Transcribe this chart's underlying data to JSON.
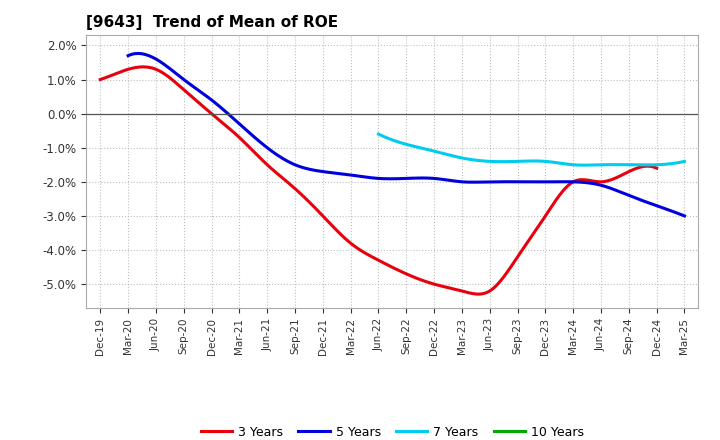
{
  "title": "[9643]  Trend of Mean of ROE",
  "background_color": "#ffffff",
  "plot_bg_color": "#ffffff",
  "grid_color": "#b0b0b0",
  "x_labels": [
    "Dec-19",
    "Mar-20",
    "Jun-20",
    "Sep-20",
    "Dec-20",
    "Mar-21",
    "Jun-21",
    "Sep-21",
    "Dec-21",
    "Mar-22",
    "Jun-22",
    "Sep-22",
    "Dec-22",
    "Mar-23",
    "Jun-23",
    "Sep-23",
    "Dec-23",
    "Mar-24",
    "Jun-24",
    "Sep-24",
    "Dec-24",
    "Mar-25"
  ],
  "ylim": [
    -0.057,
    0.023
  ],
  "yticks": [
    -0.05,
    -0.04,
    -0.03,
    -0.02,
    -0.01,
    0.0,
    0.01,
    0.02
  ],
  "series": {
    "3 Years": {
      "color": "#e8000d",
      "data": [
        [
          "Dec-19",
          0.01
        ],
        [
          "Mar-20",
          0.013
        ],
        [
          "Jun-20",
          0.013
        ],
        [
          "Sep-20",
          0.007
        ],
        [
          "Dec-20",
          0.0
        ],
        [
          "Mar-21",
          -0.007
        ],
        [
          "Jun-21",
          -0.015
        ],
        [
          "Sep-21",
          -0.022
        ],
        [
          "Dec-21",
          -0.03
        ],
        [
          "Mar-22",
          -0.038
        ],
        [
          "Jun-22",
          -0.043
        ],
        [
          "Sep-22",
          -0.047
        ],
        [
          "Dec-22",
          -0.05
        ],
        [
          "Mar-23",
          -0.052
        ],
        [
          "Jun-23",
          -0.052
        ],
        [
          "Sep-23",
          -0.042
        ],
        [
          "Dec-23",
          -0.03
        ],
        [
          "Mar-24",
          -0.02
        ],
        [
          "Jun-24",
          -0.02
        ],
        [
          "Sep-24",
          -0.017
        ],
        [
          "Dec-24",
          -0.016
        ],
        [
          "Mar-25",
          null
        ]
      ]
    },
    "5 Years": {
      "color": "#0000dd",
      "data": [
        [
          "Dec-19",
          null
        ],
        [
          "Mar-20",
          0.017
        ],
        [
          "Jun-20",
          0.016
        ],
        [
          "Sep-20",
          0.01
        ],
        [
          "Dec-20",
          0.004
        ],
        [
          "Mar-21",
          -0.003
        ],
        [
          "Jun-21",
          -0.01
        ],
        [
          "Sep-21",
          -0.015
        ],
        [
          "Dec-21",
          -0.017
        ],
        [
          "Mar-22",
          -0.018
        ],
        [
          "Jun-22",
          -0.019
        ],
        [
          "Sep-22",
          -0.019
        ],
        [
          "Dec-22",
          -0.019
        ],
        [
          "Mar-23",
          -0.02
        ],
        [
          "Jun-23",
          -0.02
        ],
        [
          "Sep-23",
          -0.02
        ],
        [
          "Dec-23",
          -0.02
        ],
        [
          "Mar-24",
          -0.02
        ],
        [
          "Jun-24",
          -0.021
        ],
        [
          "Sep-24",
          -0.024
        ],
        [
          "Dec-24",
          -0.027
        ],
        [
          "Mar-25",
          -0.03
        ]
      ]
    },
    "7 Years": {
      "color": "#00ccee",
      "data": [
        [
          "Jun-22",
          -0.006
        ],
        [
          "Sep-22",
          -0.009
        ],
        [
          "Dec-22",
          -0.011
        ],
        [
          "Mar-23",
          -0.013
        ],
        [
          "Jun-23",
          -0.014
        ],
        [
          "Sep-23",
          -0.014
        ],
        [
          "Dec-23",
          -0.014
        ],
        [
          "Mar-24",
          -0.015
        ],
        [
          "Jun-24",
          -0.015
        ],
        [
          "Sep-24",
          -0.015
        ],
        [
          "Dec-24",
          -0.015
        ],
        [
          "Mar-25",
          -0.014
        ]
      ]
    },
    "10 Years": {
      "color": "#00aa00",
      "data": []
    }
  },
  "legend_items": [
    "3 Years",
    "5 Years",
    "7 Years",
    "10 Years"
  ],
  "legend_colors": [
    "#e8000d",
    "#0000dd",
    "#00ccee",
    "#00aa00"
  ]
}
